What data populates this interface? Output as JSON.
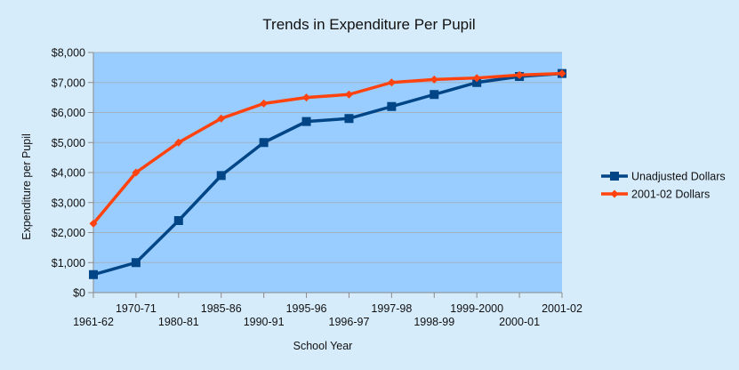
{
  "chart_data": {
    "type": "line",
    "title": "Trends in Expenditure Per Pupil",
    "xlabel": "School Year",
    "ylabel": "Expenditure per Pupil",
    "categories": [
      "1961-62",
      "1970-71",
      "1980-81",
      "1985-86",
      "1990-91",
      "1995-96",
      "1996-97",
      "1997-98",
      "1998-99",
      "1999-2000",
      "2000-01",
      "2001-02"
    ],
    "ylim": [
      0,
      8000
    ],
    "yticks": [
      0,
      1000,
      2000,
      3000,
      4000,
      5000,
      6000,
      7000,
      8000
    ],
    "ytick_labels": [
      "$0",
      "$1,000",
      "$2,000",
      "$3,000",
      "$4,000",
      "$5,000",
      "$6,000",
      "$7,000",
      "$8,000"
    ],
    "grid": true,
    "legend_position": "right",
    "plot_background": "#99ccff",
    "series": [
      {
        "name": "Unadjusted Dollars",
        "color": "#004586",
        "marker": "square",
        "values": [
          600,
          1000,
          2400,
          3900,
          5000,
          5700,
          5800,
          6200,
          6600,
          7000,
          7200,
          7300
        ]
      },
      {
        "name": "2001-02 Dollars",
        "color": "#ff420e",
        "marker": "diamond",
        "values": [
          2300,
          4000,
          5000,
          5800,
          6300,
          6500,
          6600,
          7000,
          7100,
          7150,
          7250,
          7300
        ]
      }
    ]
  }
}
